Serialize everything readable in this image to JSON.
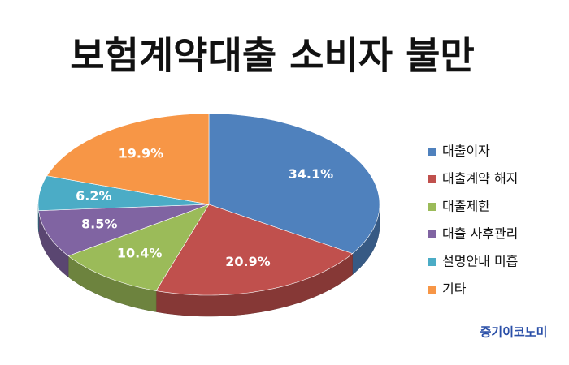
{
  "chart_data": {
    "type": "pie",
    "title": "보험계약대출 소비자 불만",
    "categories": [
      "대출이자",
      "대출계약 해지",
      "대출제한",
      "대출 사후관리",
      "설명안내 미흡",
      "기타"
    ],
    "values": [
      34.1,
      20.9,
      10.4,
      8.5,
      6.2,
      19.9
    ],
    "value_labels": [
      "34.1%",
      "20.9%",
      "10.4%",
      "8.5%",
      "6.2%",
      "19.9%"
    ],
    "colors": [
      "#4f81bd",
      "#c0504d",
      "#9bbb59",
      "#8064a2",
      "#4bacc6",
      "#f79646"
    ],
    "legend": "right",
    "watermark": "중기이코노미"
  }
}
